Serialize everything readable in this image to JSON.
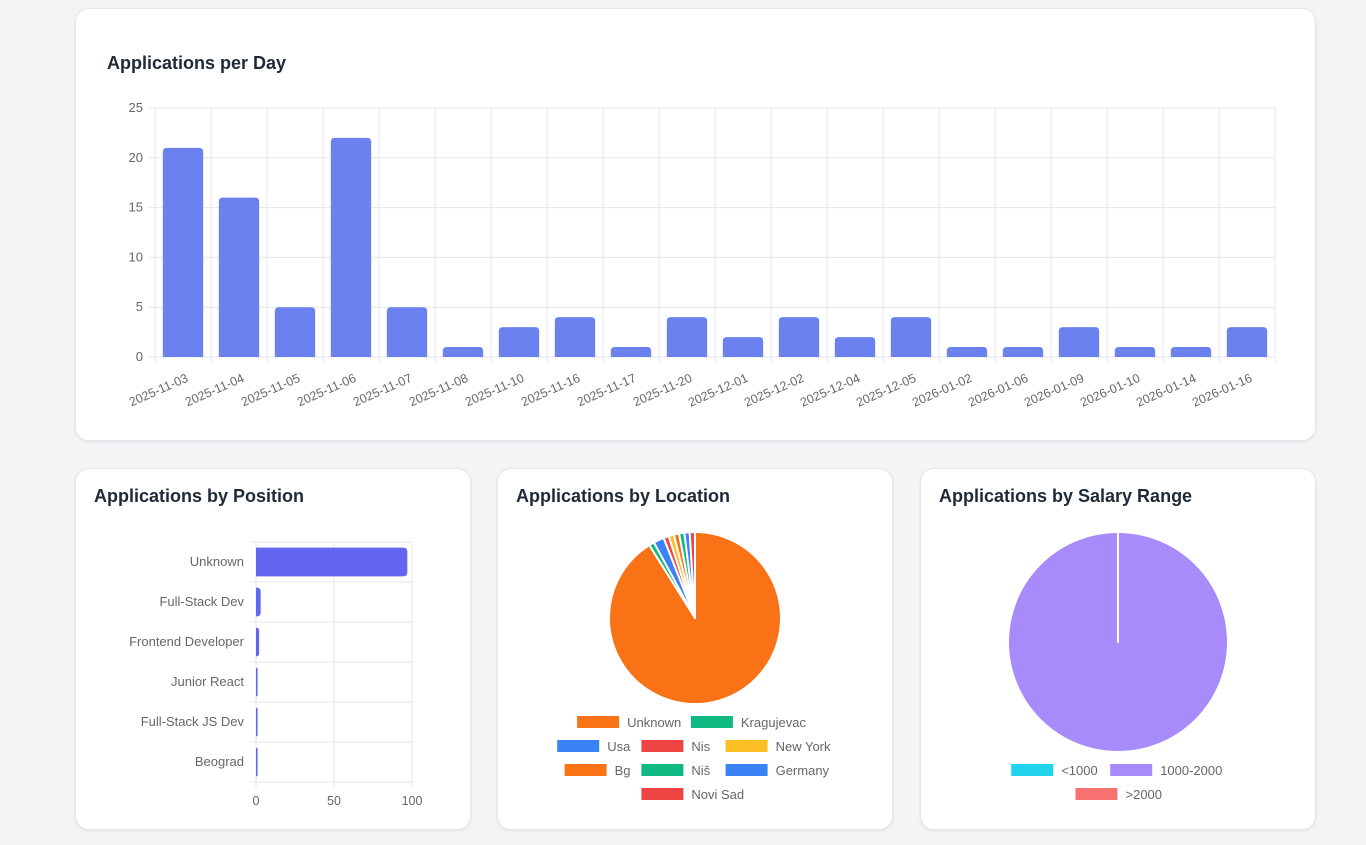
{
  "colors": {
    "bar": "#6b82ee",
    "hbar": "#6366f1",
    "grid": "#e5e7eb",
    "axis_text": "#666666"
  },
  "cards": {
    "daily_title": "Applications per Day",
    "position_title": "Applications by Position",
    "location_title": "Applications by Location",
    "salary_title": "Applications by Salary Range"
  },
  "chart_data": [
    {
      "id": "daily",
      "type": "bar",
      "title": "Applications per Day",
      "categories": [
        "2025-11-03",
        "2025-11-04",
        "2025-11-05",
        "2025-11-06",
        "2025-11-07",
        "2025-11-08",
        "2025-11-10",
        "2025-11-16",
        "2025-11-17",
        "2025-11-20",
        "2025-12-01",
        "2025-12-02",
        "2025-12-04",
        "2025-12-05",
        "2026-01-02",
        "2026-01-06",
        "2026-01-09",
        "2026-01-10",
        "2026-01-14",
        "2026-01-16"
      ],
      "values": [
        21,
        16,
        5,
        22,
        5,
        1,
        3,
        4,
        1,
        4,
        2,
        4,
        2,
        4,
        1,
        1,
        3,
        1,
        1,
        3
      ],
      "ylim": [
        0,
        25
      ],
      "yticks": [
        0,
        5,
        10,
        15,
        20,
        25
      ],
      "grid": true
    },
    {
      "id": "position",
      "type": "bar",
      "orientation": "horizontal",
      "title": "Applications by Position",
      "categories": [
        "Unknown",
        "Full-Stack Dev",
        "Frontend Developer",
        "Junior React",
        "Full-Stack JS Dev",
        "Beograd"
      ],
      "values": [
        97,
        3,
        2,
        1,
        1,
        1
      ],
      "xlim": [
        0,
        100
      ],
      "xticks": [
        0,
        50,
        100
      ]
    },
    {
      "id": "location",
      "type": "pie",
      "title": "Applications by Location",
      "labels": [
        "Unknown",
        "Kragujevac",
        "Usa",
        "Nis",
        "New York",
        "Bg",
        "Niš",
        "Germany",
        "Novi Sad"
      ],
      "values": [
        92,
        1,
        2,
        1,
        1,
        1,
        1,
        1,
        1
      ],
      "colors": [
        "#f97316",
        "#10b981",
        "#3b82f6",
        "#ef4444",
        "#fbbf24",
        "#f97316",
        "#10b981",
        "#3b82f6",
        "#ef4444"
      ]
    },
    {
      "id": "salary",
      "type": "pie",
      "title": "Applications by Salary Range",
      "labels": [
        "<1000",
        "1000-2000",
        ">2000"
      ],
      "values": [
        0,
        100,
        0
      ],
      "colors": [
        "#22d3ee",
        "#a78bfa",
        "#f87171"
      ]
    }
  ]
}
